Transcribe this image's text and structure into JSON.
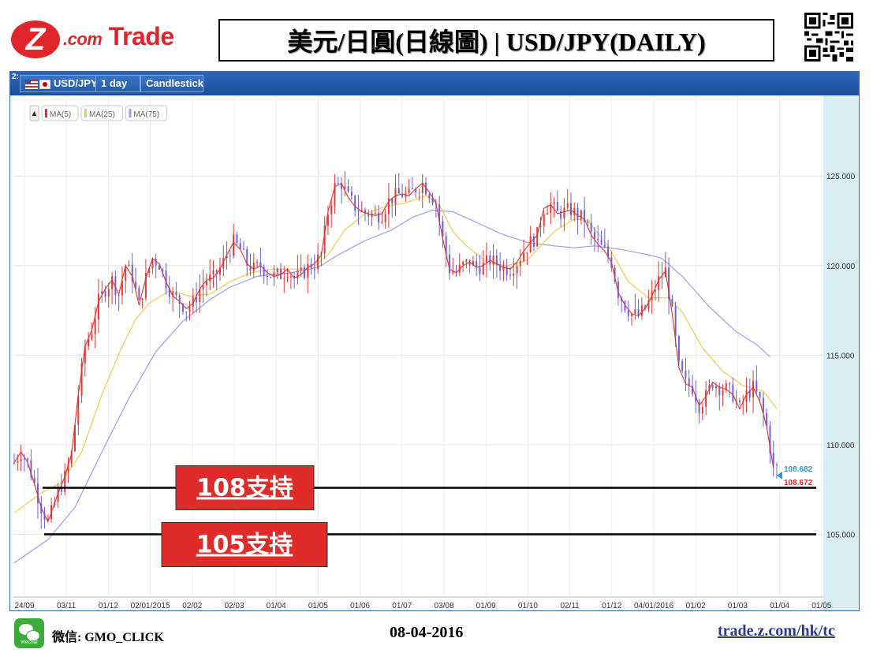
{
  "header": {
    "logo_z": "Z",
    "logo_com": ".com",
    "logo_trade": " Trade",
    "title": "美元/日圓(日線圖) | USD/JPY(DAILY)"
  },
  "toolbar": {
    "panel_number": "2:",
    "symbol": "USD/JPY",
    "timeframe": "1 day",
    "chart_style": "Candlestick"
  },
  "colors": {
    "ma5": "#e8302d",
    "ma25": "#f2c94c",
    "ma75": "#9a9ef0",
    "candle_up": "#e23b3b",
    "candle_down": "#6a63e0",
    "support_box": "#e02b2b",
    "current_price": "#2a9bd1",
    "last_price": "#e02b2b"
  },
  "chart_data": {
    "type": "candlestick",
    "legend": [
      "MA(5)",
      "MA(25)",
      "MA(75)"
    ],
    "x_tick_labels": [
      "24/09",
      "03/11",
      "01/12",
      "02/01/2015",
      "02/02",
      "02/03",
      "01/04",
      "01/05",
      "01/06",
      "01/07",
      "03/08",
      "01/09",
      "01/10",
      "02/11",
      "01/12",
      "04/01/2016",
      "01/02",
      "01/03",
      "01/04",
      "01/05"
    ],
    "y_tick_labels": [
      "125.000",
      "120.000",
      "115.000",
      "110.000",
      "105.000"
    ],
    "y_ticks": [
      125,
      120,
      115,
      110,
      105
    ],
    "ylim": [
      101.5,
      129.5
    ],
    "current_price": "108.682",
    "last_price": "108.672",
    "support_lines": [
      {
        "value": 107.6,
        "label": "108支持"
      },
      {
        "value": 105.0,
        "label": "105支持"
      }
    ],
    "close_path": [
      [
        0,
        109
      ],
      [
        2,
        109.6
      ],
      [
        4,
        109
      ],
      [
        6,
        107.8
      ],
      [
        8,
        106.5
      ],
      [
        10,
        105.7
      ],
      [
        11,
        106.2
      ],
      [
        13,
        107.3
      ],
      [
        15,
        108.2
      ],
      [
        17,
        109.5
      ],
      [
        19,
        112.8
      ],
      [
        21,
        115.5
      ],
      [
        23,
        116.4
      ],
      [
        25,
        118
      ],
      [
        27,
        118.7
      ],
      [
        29,
        119.2
      ],
      [
        31,
        118.4
      ],
      [
        33,
        120
      ],
      [
        35,
        119.4
      ],
      [
        37,
        117.8
      ],
      [
        39,
        119.3
      ],
      [
        41,
        120.4
      ],
      [
        43,
        120.1
      ],
      [
        45,
        119.1
      ],
      [
        47,
        118.3
      ],
      [
        49,
        118
      ],
      [
        51,
        117.6
      ],
      [
        53,
        117.9
      ],
      [
        55,
        118.7
      ],
      [
        57,
        119.2
      ],
      [
        59,
        119.3
      ],
      [
        61,
        119.8
      ],
      [
        63,
        120.6
      ],
      [
        65,
        121.3
      ],
      [
        67,
        120.9
      ],
      [
        69,
        120.1
      ],
      [
        71,
        119.8
      ],
      [
        73,
        120
      ],
      [
        75,
        119.6
      ],
      [
        77,
        119.4
      ],
      [
        79,
        119.5
      ],
      [
        81,
        119.8
      ],
      [
        83,
        119.3
      ],
      [
        85,
        119.5
      ],
      [
        87,
        119.9
      ],
      [
        89,
        120.1
      ],
      [
        91,
        120.6
      ],
      [
        93,
        123
      ],
      [
        95,
        124.4
      ],
      [
        97,
        124.6
      ],
      [
        99,
        123.8
      ],
      [
        101,
        123.3
      ],
      [
        103,
        123
      ],
      [
        105,
        122.9
      ],
      [
        107,
        122.8
      ],
      [
        109,
        122.9
      ],
      [
        111,
        123.6
      ],
      [
        113,
        123.9
      ],
      [
        115,
        124
      ],
      [
        117,
        123.9
      ],
      [
        119,
        124.3
      ],
      [
        121,
        124.6
      ],
      [
        123,
        124.1
      ],
      [
        125,
        123.5
      ],
      [
        127,
        121.5
      ],
      [
        129,
        119.8
      ],
      [
        131,
        119.6
      ],
      [
        133,
        120
      ],
      [
        135,
        120.2
      ],
      [
        137,
        119.9
      ],
      [
        139,
        120
      ],
      [
        141,
        120.3
      ],
      [
        143,
        120.1
      ],
      [
        145,
        119.9
      ],
      [
        147,
        119.8
      ],
      [
        149,
        120.2
      ],
      [
        151,
        120.8
      ],
      [
        153,
        121.3
      ],
      [
        155,
        121.7
      ],
      [
        157,
        123.2
      ],
      [
        159,
        123.4
      ],
      [
        161,
        122.9
      ],
      [
        163,
        123
      ],
      [
        165,
        123.1
      ],
      [
        167,
        122.8
      ],
      [
        169,
        122.6
      ],
      [
        171,
        121.7
      ],
      [
        173,
        121.2
      ],
      [
        175,
        120.8
      ],
      [
        177,
        120.2
      ],
      [
        179,
        118.5
      ],
      [
        181,
        117.8
      ],
      [
        183,
        117.3
      ],
      [
        185,
        117.2
      ],
      [
        187,
        117.6
      ],
      [
        189,
        118.3
      ],
      [
        191,
        119.2
      ],
      [
        193,
        119.7
      ],
      [
        195,
        117.3
      ],
      [
        197,
        114.3
      ],
      [
        199,
        113.4
      ],
      [
        201,
        113.2
      ],
      [
        203,
        112.2
      ],
      [
        205,
        112.7
      ],
      [
        207,
        113.5
      ],
      [
        209,
        113.2
      ],
      [
        211,
        113.1
      ],
      [
        213,
        112.8
      ],
      [
        215,
        112
      ],
      [
        217,
        112.8
      ],
      [
        219,
        113.2
      ],
      [
        221,
        112.4
      ],
      [
        223,
        111
      ],
      [
        225,
        108.7
      ]
    ],
    "ma25_path": [
      [
        0,
        106.2
      ],
      [
        8,
        107.3
      ],
      [
        14,
        107.9
      ],
      [
        20,
        109.6
      ],
      [
        26,
        112.8
      ],
      [
        32,
        115.5
      ],
      [
        36,
        117
      ],
      [
        40,
        117.9
      ],
      [
        46,
        118.6
      ],
      [
        52,
        118.3
      ],
      [
        58,
        118.4
      ],
      [
        64,
        119.1
      ],
      [
        70,
        119.6
      ],
      [
        76,
        119.8
      ],
      [
        82,
        119.8
      ],
      [
        88,
        119.8
      ],
      [
        93,
        120.6
      ],
      [
        98,
        122
      ],
      [
        104,
        122.9
      ],
      [
        110,
        123.3
      ],
      [
        116,
        123.5
      ],
      [
        122,
        123.9
      ],
      [
        126,
        123.4
      ],
      [
        130,
        121.9
      ],
      [
        134,
        121.1
      ],
      [
        140,
        120.2
      ],
      [
        146,
        120
      ],
      [
        152,
        120.3
      ],
      [
        156,
        121.1
      ],
      [
        160,
        121.9
      ],
      [
        166,
        122.6
      ],
      [
        170,
        122.5
      ],
      [
        176,
        121.1
      ],
      [
        182,
        119.1
      ],
      [
        188,
        118.2
      ],
      [
        194,
        118.2
      ],
      [
        198,
        117.4
      ],
      [
        204,
        115.4
      ],
      [
        210,
        114.1
      ],
      [
        216,
        113.3
      ],
      [
        222,
        113
      ],
      [
        226,
        112
      ]
    ],
    "ma75_path": [
      [
        0,
        103.4
      ],
      [
        10,
        104.7
      ],
      [
        18,
        106.5
      ],
      [
        26,
        109.6
      ],
      [
        34,
        112.6
      ],
      [
        42,
        115.2
      ],
      [
        50,
        116.9
      ],
      [
        58,
        118.1
      ],
      [
        64,
        118.8
      ],
      [
        72,
        119.4
      ],
      [
        82,
        119.6
      ],
      [
        90,
        119.9
      ],
      [
        96,
        120.6
      ],
      [
        104,
        121.4
      ],
      [
        112,
        122
      ],
      [
        118,
        122.7
      ],
      [
        124,
        123.1
      ],
      [
        130,
        123
      ],
      [
        136,
        122.5
      ],
      [
        144,
        121.8
      ],
      [
        152,
        121.3
      ],
      [
        160,
        121.1
      ],
      [
        166,
        121
      ],
      [
        172,
        121.1
      ],
      [
        180,
        120.9
      ],
      [
        188,
        120.6
      ],
      [
        192,
        120.4
      ],
      [
        198,
        119.4
      ],
      [
        206,
        117.7
      ],
      [
        214,
        116.3
      ],
      [
        220,
        115.6
      ],
      [
        224,
        114.9
      ]
    ]
  },
  "footer": {
    "wechat_sub": "WeChat",
    "wechat_label": "微信: GMO_CLICK",
    "date": "08-04-2016",
    "url": "trade.z.com/hk/tc"
  }
}
